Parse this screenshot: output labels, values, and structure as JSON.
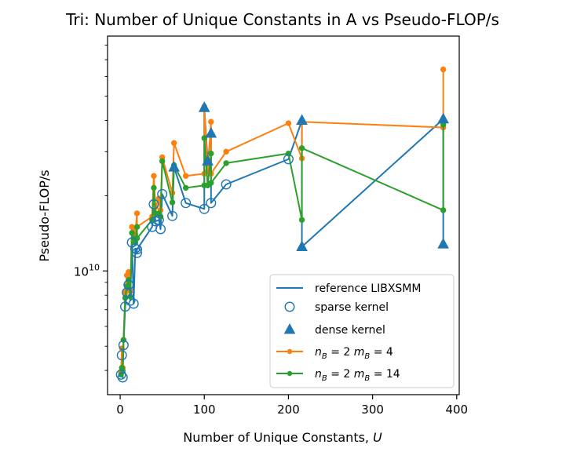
{
  "chart_data": {
    "type": "line",
    "title": "Tri: Number of Unique Constants in A vs Pseudo-FLOP/s",
    "xlabel": "Number of Unique Constants,",
    "xlabel_var": "U",
    "ylabel": "Pseudo-FLOP/s",
    "y_scale": "log",
    "xlim": [
      -15,
      403
    ],
    "ylim": [
      3200000000.0,
      87000000000.0
    ],
    "x_ticks": [
      0,
      100,
      200,
      300,
      400
    ],
    "y_tick_label": {
      "base": "10",
      "exp": "10",
      "value": 10000000000.0
    },
    "grid": false,
    "legend_position": "lower-right",
    "colors": {
      "blue": "#1f77b4",
      "orange": "#ff7f0e",
      "green": "#2ca02c"
    },
    "series": [
      {
        "name": "reference LIBXSMM",
        "role": "reference",
        "color": "#1f77b4",
        "points": [
          [
            1,
            3850000000.0
          ],
          [
            2,
            4600000000.0
          ],
          [
            3,
            3750000000.0
          ],
          [
            4,
            5050000000.0
          ],
          [
            6,
            7200000000.0
          ],
          [
            8,
            8200000000.0
          ],
          [
            10,
            8800000000.0
          ],
          [
            12,
            7600000000.0
          ],
          [
            14,
            13000000000.0
          ],
          [
            16,
            7400000000.0
          ],
          [
            18,
            12300000000.0
          ],
          [
            20,
            11800000000.0
          ],
          [
            20,
            12200000000.0
          ],
          [
            38,
            15000000000.0
          ],
          [
            40,
            18500000000.0
          ],
          [
            42,
            15800000000.0
          ],
          [
            46,
            16000000000.0
          ],
          [
            48,
            14700000000.0
          ],
          [
            50,
            20300000000.0
          ],
          [
            62,
            16600000000.0
          ],
          [
            64,
            26000000000.0
          ],
          [
            78,
            18700000000.0
          ],
          [
            100,
            17700000000.0
          ],
          [
            100,
            45000000000.0
          ],
          [
            104,
            27500000000.0
          ],
          [
            108,
            35500000000.0
          ],
          [
            108,
            18700000000.0
          ],
          [
            126,
            22200000000.0
          ],
          [
            200,
            28000000000.0
          ],
          [
            216,
            40000000000.0
          ],
          [
            216,
            12500000000.0
          ],
          [
            384,
            40500000000.0
          ],
          [
            384,
            12800000000.0
          ]
        ]
      },
      {
        "name": "n_B = 2 m_B = 4",
        "role": "variant",
        "color": "#ff7f0e",
        "points": [
          [
            1,
            3950000000.0
          ],
          [
            2,
            4900000000.0
          ],
          [
            3,
            4100000000.0
          ],
          [
            4,
            5300000000.0
          ],
          [
            6,
            8200000000.0
          ],
          [
            8,
            9600000000.0
          ],
          [
            10,
            9900000000.0
          ],
          [
            12,
            8300000000.0
          ],
          [
            14,
            15000000000.0
          ],
          [
            16,
            14500000000.0
          ],
          [
            18,
            14000000000.0
          ],
          [
            20,
            17000000000.0
          ],
          [
            20,
            15000000000.0
          ],
          [
            38,
            16500000000.0
          ],
          [
            40,
            24000000000.0
          ],
          [
            42,
            18000000000.0
          ],
          [
            46,
            19500000000.0
          ],
          [
            48,
            17500000000.0
          ],
          [
            50,
            28500000000.0
          ],
          [
            62,
            20500000000.0
          ],
          [
            64,
            32500000000.0
          ],
          [
            78,
            24000000000.0
          ],
          [
            100,
            24500000000.0
          ],
          [
            100,
            45500000000.0
          ],
          [
            104,
            25000000000.0
          ],
          [
            108,
            39500000000.0
          ],
          [
            108,
            24500000000.0
          ],
          [
            126,
            30000000000.0
          ],
          [
            200,
            39000000000.0
          ],
          [
            216,
            28200000000.0
          ],
          [
            216,
            39500000000.0
          ],
          [
            384,
            37500000000.0
          ],
          [
            384,
            64000000000.0
          ]
        ]
      },
      {
        "name": "n_B = 2 m_B = 14",
        "role": "variant",
        "color": "#2ca02c",
        "points": [
          [
            1,
            3850000000.0
          ],
          [
            2,
            4100000000.0
          ],
          [
            3,
            4000000000.0
          ],
          [
            4,
            5300000000.0
          ],
          [
            6,
            7800000000.0
          ],
          [
            8,
            8700000000.0
          ],
          [
            10,
            9200000000.0
          ],
          [
            12,
            7900000000.0
          ],
          [
            14,
            14200000000.0
          ],
          [
            16,
            13500000000.0
          ],
          [
            18,
            13000000000.0
          ],
          [
            20,
            15000000000.0
          ],
          [
            20,
            13500000000.0
          ],
          [
            38,
            16000000000.0
          ],
          [
            40,
            21500000000.0
          ],
          [
            42,
            17000000000.0
          ],
          [
            46,
            17000000000.0
          ],
          [
            48,
            16500000000.0
          ],
          [
            50,
            27500000000.0
          ],
          [
            62,
            18800000000.0
          ],
          [
            64,
            26500000000.0
          ],
          [
            78,
            21500000000.0
          ],
          [
            100,
            22000000000.0
          ],
          [
            100,
            34000000000.0
          ],
          [
            104,
            22000000000.0
          ],
          [
            108,
            29500000000.0
          ],
          [
            108,
            22500000000.0
          ],
          [
            126,
            27000000000.0
          ],
          [
            200,
            29500000000.0
          ],
          [
            216,
            16000000000.0
          ],
          [
            216,
            31000000000.0
          ],
          [
            384,
            17500000000.0
          ],
          [
            384,
            38500000000.0
          ]
        ]
      }
    ],
    "markers": {
      "sparse": {
        "name": "sparse kernel",
        "points": [
          [
            1,
            3850000000.0
          ],
          [
            2,
            4600000000.0
          ],
          [
            3,
            3750000000.0
          ],
          [
            4,
            5050000000.0
          ],
          [
            6,
            7200000000.0
          ],
          [
            8,
            8200000000.0
          ],
          [
            10,
            8800000000.0
          ],
          [
            12,
            7600000000.0
          ],
          [
            14,
            13000000000.0
          ],
          [
            16,
            7400000000.0
          ],
          [
            18,
            12300000000.0
          ],
          [
            20,
            11800000000.0
          ],
          [
            20,
            12200000000.0
          ],
          [
            38,
            15000000000.0
          ],
          [
            40,
            18500000000.0
          ],
          [
            42,
            15800000000.0
          ],
          [
            46,
            16000000000.0
          ],
          [
            48,
            14700000000.0
          ],
          [
            50,
            20300000000.0
          ],
          [
            62,
            16600000000.0
          ],
          [
            78,
            18700000000.0
          ],
          [
            100,
            17700000000.0
          ],
          [
            108,
            18700000000.0
          ],
          [
            126,
            22200000000.0
          ],
          [
            200,
            28000000000.0
          ]
        ]
      },
      "dense": {
        "name": "dense kernel",
        "points": [
          [
            64,
            26000000000.0
          ],
          [
            100,
            45000000000.0
          ],
          [
            104,
            27500000000.0
          ],
          [
            108,
            35500000000.0
          ],
          [
            216,
            40000000000.0
          ],
          [
            216,
            12500000000.0
          ],
          [
            384,
            40500000000.0
          ],
          [
            384,
            12800000000.0
          ]
        ]
      }
    },
    "legend": [
      {
        "label": "reference LIBXSMM",
        "kind": "line",
        "color": "#1f77b4"
      },
      {
        "label": "sparse kernel",
        "kind": "open-circle",
        "color": "#1f77b4"
      },
      {
        "label": "dense kernel",
        "kind": "triangle",
        "color": "#1f77b4"
      },
      {
        "label_html": "n_B = 2 m_B = 4",
        "var1": "n",
        "sub1": "B",
        "val1": "2",
        "var2": "m",
        "sub2": "B",
        "val2": "4",
        "kind": "line-dot",
        "color": "#ff7f0e"
      },
      {
        "label_html": "n_B = 2 m_B = 14",
        "var1": "n",
        "sub1": "B",
        "val1": "2",
        "var2": "m",
        "sub2": "B",
        "val2": "14",
        "kind": "line-dot",
        "color": "#2ca02c"
      }
    ]
  }
}
